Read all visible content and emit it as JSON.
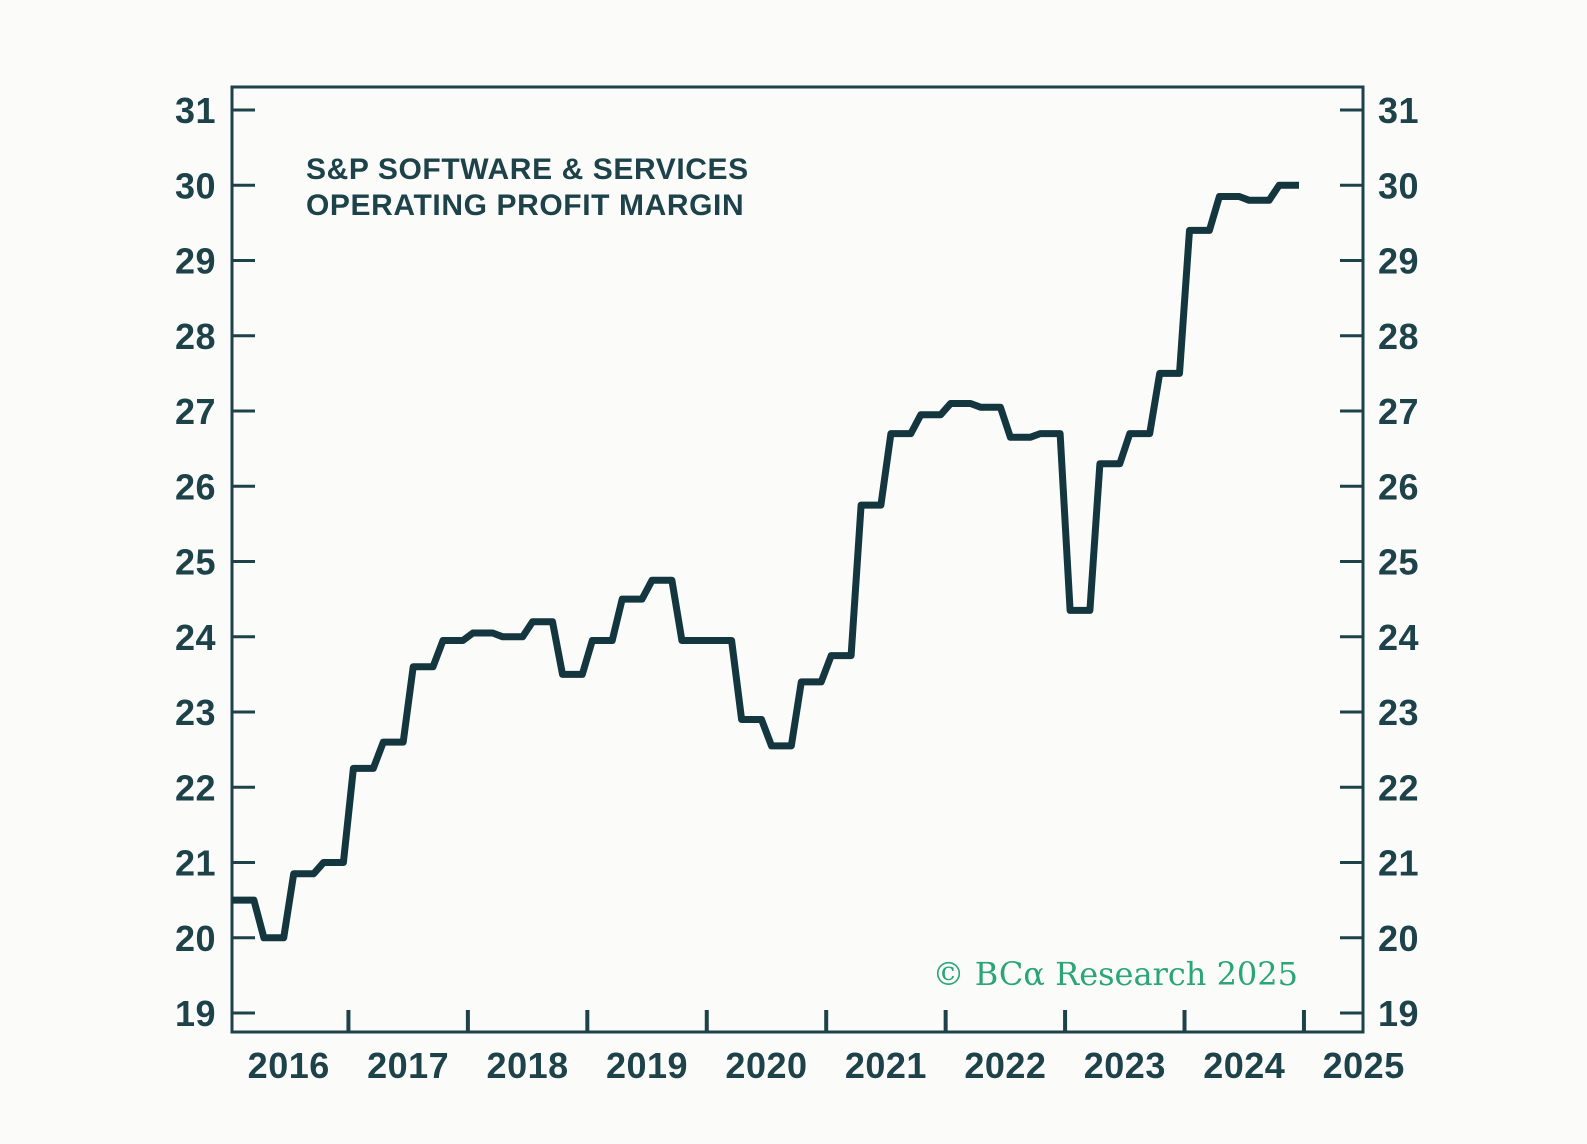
{
  "title": {
    "line1": "S&P SOFTWARE & SERVICES",
    "line2": "OPERATING PROFIT MARGIN"
  },
  "watermark": {
    "text": "© BCα Research 2025",
    "color": "#2aa57b"
  },
  "colors": {
    "background": "#fbfbf9",
    "ink": "#1d4249",
    "line": "#14363e"
  },
  "chart_data": {
    "type": "line",
    "step": true,
    "title": "S&P SOFTWARE & SERVICES OPERATING PROFIT MARGIN",
    "series_name": "S&P Software & Services operating profit margin",
    "categories": [
      "2016 Q1",
      "2016 Q2",
      "2016 Q3",
      "2016 Q4",
      "2017 Q1",
      "2017 Q2",
      "2017 Q3",
      "2017 Q4",
      "2018 Q1",
      "2018 Q2",
      "2018 Q3",
      "2018 Q4",
      "2019 Q1",
      "2019 Q2",
      "2019 Q3",
      "2019 Q4",
      "2020 Q1",
      "2020 Q2",
      "2020 Q3",
      "2020 Q4",
      "2021 Q1",
      "2021 Q2",
      "2021 Q3",
      "2021 Q4",
      "2022 Q1",
      "2022 Q2",
      "2022 Q3",
      "2022 Q4",
      "2023 Q1",
      "2023 Q2",
      "2023 Q3",
      "2023 Q4",
      "2024 Q1",
      "2024 Q2",
      "2024 Q3",
      "2024 Q4"
    ],
    "values": [
      20.5,
      20.0,
      20.85,
      21.0,
      22.25,
      22.6,
      23.6,
      23.95,
      24.05,
      24.0,
      24.2,
      23.5,
      23.95,
      24.5,
      24.75,
      23.95,
      23.95,
      22.9,
      22.55,
      23.4,
      23.75,
      25.75,
      26.7,
      26.95,
      27.1,
      27.05,
      26.65,
      26.7,
      24.35,
      26.3,
      26.7,
      27.5,
      29.4,
      29.85,
      29.8,
      30.0
    ],
    "x_tick_labels": [
      "2016",
      "2017",
      "2018",
      "2019",
      "2020",
      "2021",
      "2022",
      "2023",
      "2024",
      "2025"
    ],
    "y_ticks": [
      19,
      20,
      21,
      22,
      23,
      24,
      25,
      26,
      27,
      28,
      29,
      30,
      31
    ],
    "ylim": [
      19,
      31
    ],
    "xlim_years": [
      2016.0,
      2025.5
    ],
    "xlabel": "",
    "ylabel": "",
    "grid": false,
    "legend_position": "none",
    "y_axis_sides": [
      "left",
      "right"
    ]
  }
}
